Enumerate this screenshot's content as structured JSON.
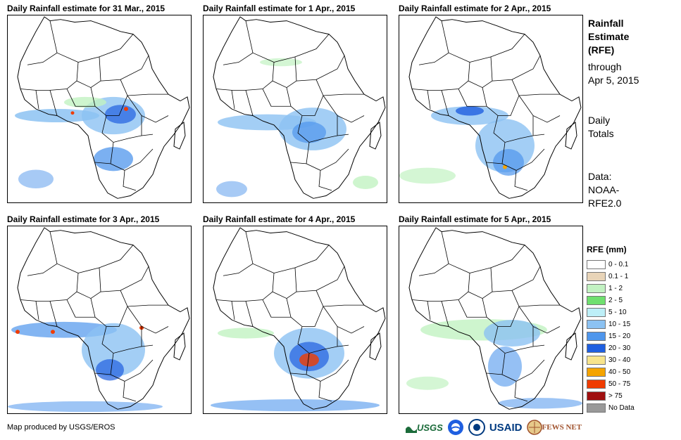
{
  "panels": [
    {
      "title": "Daily Rainfall estimate for 31 Mar., 2015"
    },
    {
      "title": "Daily Rainfall estimate for 1 Apr., 2015"
    },
    {
      "title": "Daily Rainfall estimate for 2 Apr., 2015"
    },
    {
      "title": "Daily Rainfall estimate for 3 Apr., 2015"
    },
    {
      "title": "Daily Rainfall estimate for 4 Apr., 2015"
    },
    {
      "title": "Daily Rainfall estimate for 5 Apr., 2015"
    }
  ],
  "info": {
    "title_line1": "Rainfall",
    "title_line2": "Estimate",
    "title_line3": "(RFE)",
    "through_line1": "through",
    "through_line2": "Apr 5, 2015",
    "totals_line1": "Daily",
    "totals_line2": "Totals",
    "data_line1": "Data:",
    "data_line2": "NOAA-",
    "data_line3": "RFE2.0"
  },
  "legend": {
    "title": "RFE (mm)",
    "items": [
      {
        "label": "0 - 0.1",
        "color": "#ffffff"
      },
      {
        "label": "0.1 - 1",
        "color": "#e8d4b8"
      },
      {
        "label": "1 - 2",
        "color": "#c2f2c2"
      },
      {
        "label": "2 - 5",
        "color": "#6fe06f"
      },
      {
        "label": "5 - 10",
        "color": "#bdeff7"
      },
      {
        "label": "10 - 15",
        "color": "#8cc2f2"
      },
      {
        "label": "15 - 20",
        "color": "#4f96ec"
      },
      {
        "label": "20 - 30",
        "color": "#1f5fe0"
      },
      {
        "label": "30 - 40",
        "color": "#f7e48c"
      },
      {
        "label": "40 - 50",
        "color": "#f5a400"
      },
      {
        "label": "50 - 75",
        "color": "#f03c00"
      },
      {
        "label": "> 75",
        "color": "#a01010"
      },
      {
        "label": "No Data",
        "color": "#999999"
      }
    ]
  },
  "footer": {
    "credit": "Map produced by USGS/EROS",
    "logo_usgs": "USGS",
    "logo_usaid": "USAID",
    "logo_fews": "FEWS NET"
  }
}
